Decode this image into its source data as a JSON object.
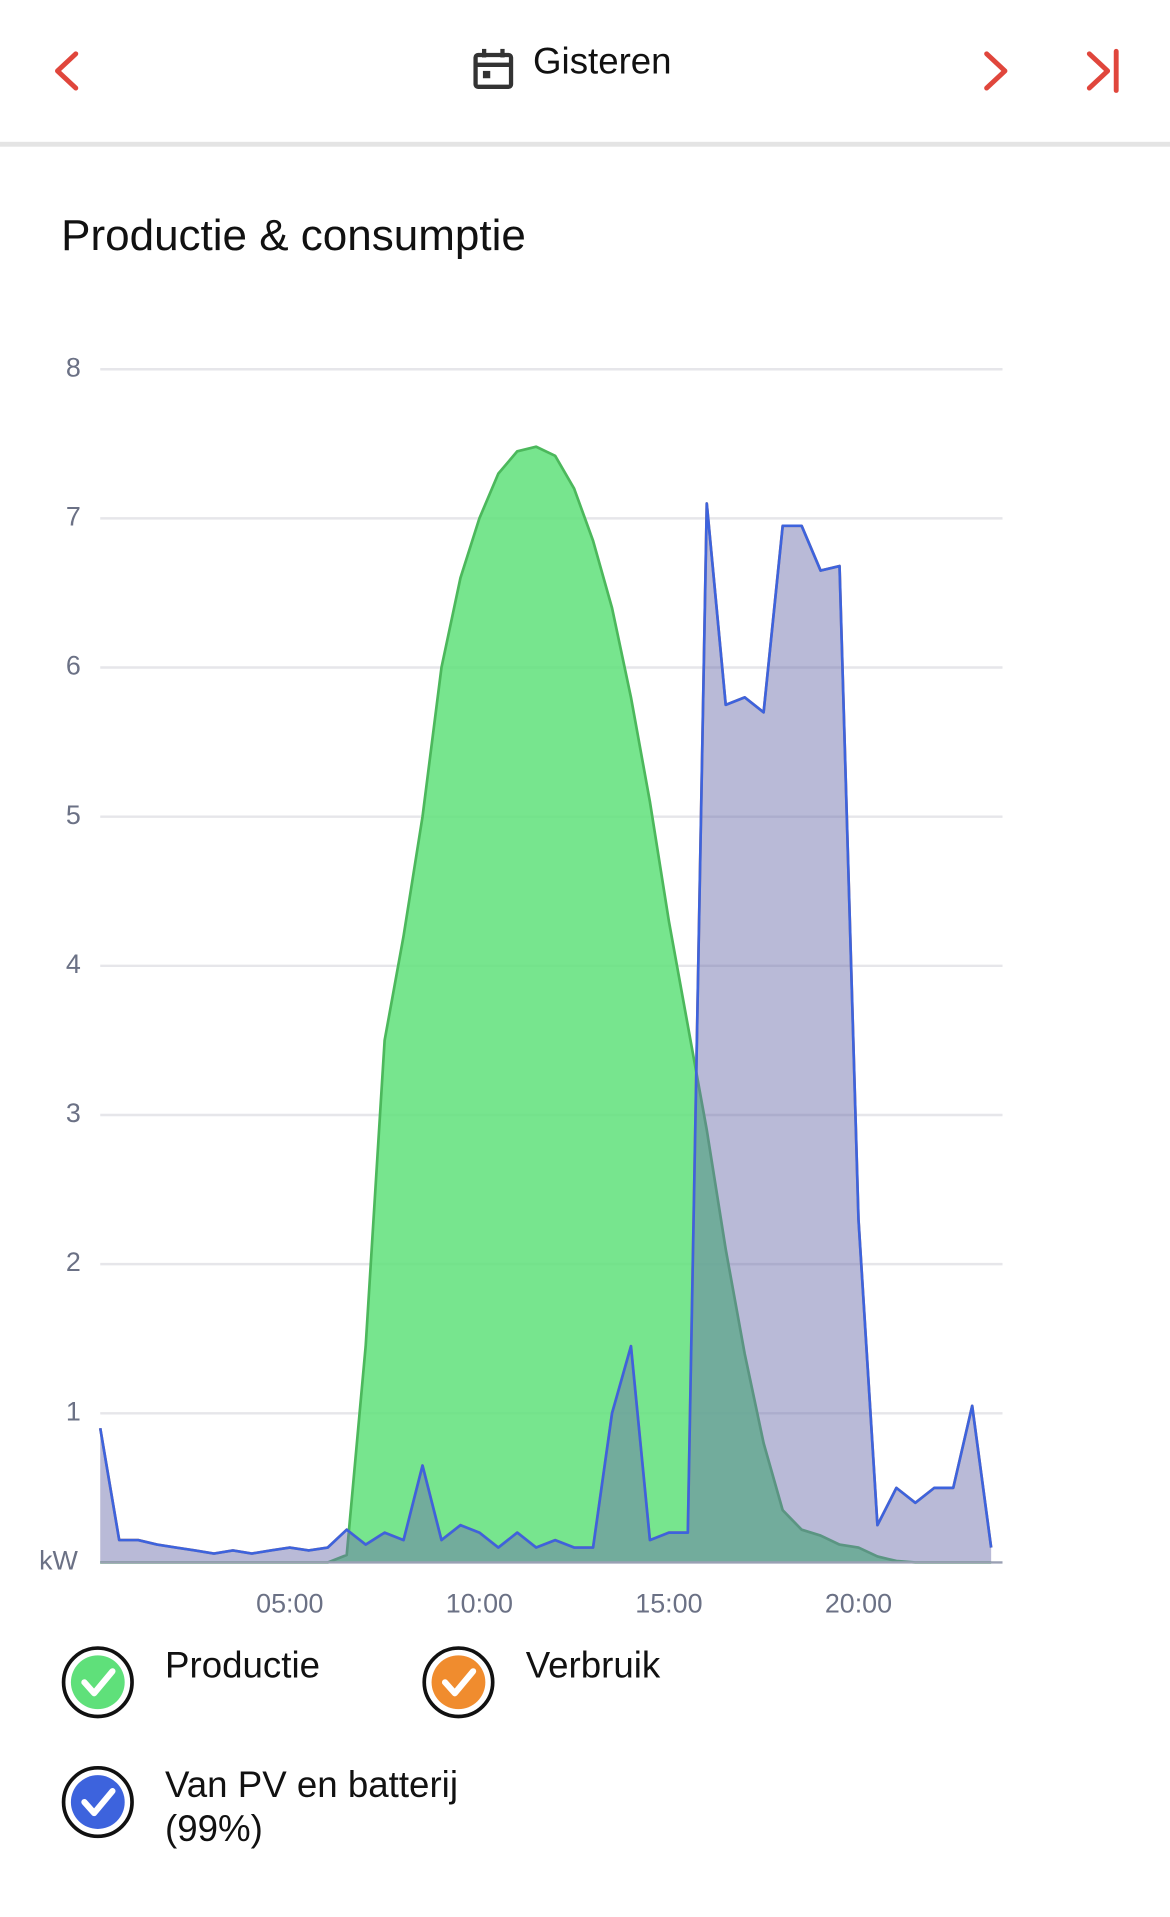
{
  "header": {
    "title": "Gisteren"
  },
  "chart_data": {
    "type": "area",
    "title": "Productie & consumptie",
    "x": [
      0,
      0.5,
      1,
      1.5,
      2,
      2.5,
      3,
      3.5,
      4,
      4.5,
      5,
      5.5,
      6,
      6.5,
      7,
      7.5,
      8,
      8.5,
      9,
      9.5,
      10,
      10.5,
      11,
      11.5,
      12,
      12.5,
      13,
      13.5,
      14,
      14.5,
      15,
      15.5,
      16,
      16.5,
      17,
      17.5,
      18,
      18.5,
      19,
      19.5,
      20,
      20.5,
      21,
      21.5,
      22,
      22.5,
      23,
      23.5
    ],
    "xlim": [
      0,
      23.8
    ],
    "xticks": [
      {
        "value": 5,
        "label": "05:00"
      },
      {
        "value": 10,
        "label": "10:00"
      },
      {
        "value": 15,
        "label": "15:00"
      },
      {
        "value": 20,
        "label": "20:00"
      }
    ],
    "ylim": [
      0,
      8
    ],
    "yticks": [
      {
        "value": 0,
        "label": "kW"
      },
      1,
      2,
      3,
      4,
      5,
      6,
      7,
      8
    ],
    "grid": true,
    "series": [
      {
        "name": "Productie",
        "color": "#5fe07a",
        "values": [
          0,
          0,
          0,
          0,
          0,
          0,
          0,
          0,
          0,
          0,
          0,
          0,
          0,
          0.05,
          1.45,
          3.5,
          4.2,
          5.0,
          6.0,
          6.6,
          7.0,
          7.3,
          7.45,
          7.48,
          7.42,
          7.2,
          6.85,
          6.4,
          5.8,
          5.1,
          4.3,
          3.6,
          2.9,
          2.1,
          1.4,
          0.8,
          0.35,
          0.22,
          0.18,
          0.12,
          0.1,
          0.04,
          0.01,
          0,
          0,
          0,
          0,
          0
        ]
      },
      {
        "name": "Verbruik",
        "color": "#f08c2e",
        "values": [
          0.9,
          0.15,
          0.15,
          0.12,
          0.1,
          0.08,
          0.06,
          0.08,
          0.06,
          0.08,
          0.1,
          0.08,
          0.1,
          0.22,
          0.12,
          0.2,
          0.15,
          0.65,
          0.15,
          0.25,
          0.2,
          0.1,
          0.2,
          0.1,
          0.15,
          0.1,
          0.1,
          1.0,
          1.45,
          0.15,
          0.2,
          0.2,
          7.1,
          5.75,
          5.8,
          5.7,
          6.95,
          6.95,
          6.65,
          6.68,
          2.3,
          0.25,
          0.5,
          0.4,
          0.5,
          0.5,
          1.05,
          0.1
        ]
      },
      {
        "name": "Van PV en batterij (99%)",
        "color": "#3d63dd",
        "values": [
          0.9,
          0.15,
          0.15,
          0.12,
          0.1,
          0.08,
          0.06,
          0.08,
          0.06,
          0.08,
          0.1,
          0.08,
          0.1,
          0.22,
          0.12,
          0.2,
          0.15,
          0.65,
          0.15,
          0.25,
          0.2,
          0.1,
          0.2,
          0.1,
          0.15,
          0.1,
          0.1,
          1.0,
          1.45,
          0.15,
          0.2,
          0.2,
          7.1,
          5.75,
          5.8,
          5.7,
          6.95,
          6.95,
          6.65,
          6.68,
          2.3,
          0.25,
          0.5,
          0.4,
          0.5,
          0.5,
          1.05,
          0.1
        ]
      }
    ]
  }
}
